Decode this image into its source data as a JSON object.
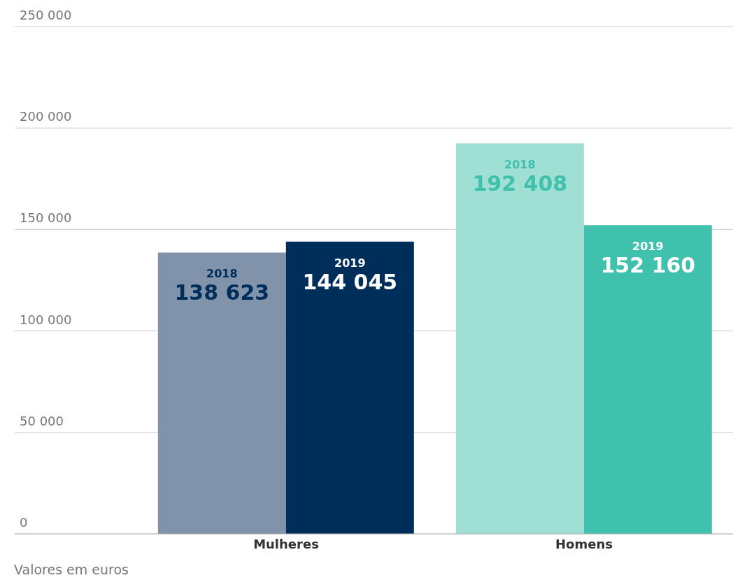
{
  "chart_data": {
    "type": "bar",
    "categories": [
      "Mulheres",
      "Homens"
    ],
    "series": [
      {
        "name": "2018",
        "colors": [
          "#8093ab",
          "#a0dfd4"
        ],
        "values": [
          138623,
          192408
        ],
        "value_labels": [
          "138 623",
          "192 408"
        ]
      },
      {
        "name": "2019",
        "colors": [
          "#002e5a",
          "#40c1ad"
        ],
        "values": [
          144045,
          152160
        ],
        "value_labels": [
          "144 045",
          "152 160"
        ]
      }
    ],
    "ylim": [
      0,
      250000
    ],
    "yticks": [
      0,
      {
        "value": 50000,
        "label": "50 000"
      },
      {
        "value": 100000,
        "label": "100 000"
      },
      {
        "value": 150000,
        "label": "150 000"
      },
      {
        "value": 200000,
        "label": "200 000"
      },
      {
        "value": 250000,
        "label": "250 000"
      }
    ],
    "grid": "y",
    "annotations": [
      "Valores em euros"
    ]
  }
}
